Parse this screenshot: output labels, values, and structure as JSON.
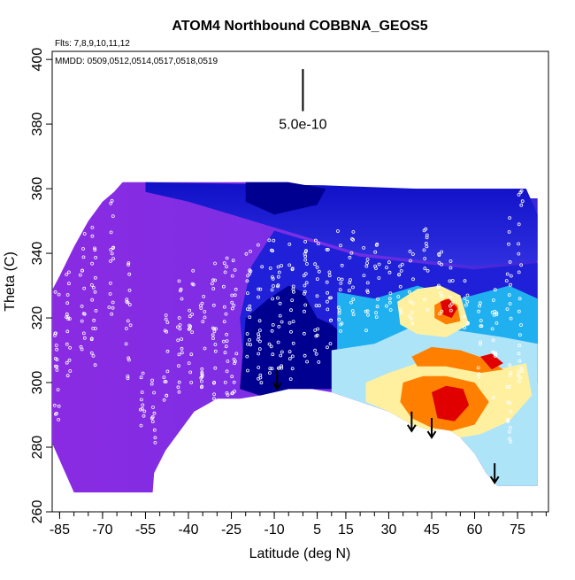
{
  "chart_data": {
    "type": "heatmap",
    "title": "ATOM4 Northbound COBBNA_GEOS5",
    "notes": [
      "Flts: 7,8,9,10,11,12",
      "MMDD: 0509,0512,0514,0517,0518,0519"
    ],
    "xlabel": "Latitude (deg N)",
    "ylabel": "Theta (C)",
    "xlim": [
      -87.6,
      85.8
    ],
    "ylim": [
      260,
      402.5
    ],
    "xticks": [
      -85,
      -70,
      -55,
      -40,
      -25,
      -10,
      5,
      15,
      30,
      45,
      60,
      75
    ],
    "yticks": [
      260,
      280,
      300,
      320,
      340,
      360,
      380,
      400
    ],
    "scale_bar": {
      "label": "5.0e-10",
      "lat": 0,
      "theta_from": 384,
      "theta_to": 397
    },
    "grid": false,
    "arrows": [
      {
        "lat": -9,
        "theta": 298
      },
      {
        "lat": 38,
        "theta": 285
      },
      {
        "lat": 45,
        "theta": 283
      },
      {
        "lat": 67,
        "theta": 269
      }
    ],
    "colors": {
      "violet": "#8a2be2",
      "blue": "#2020d8",
      "navy": "#000090",
      "lightblue": "#aee4f8",
      "cyan": "#20b0f0",
      "yellow": "#fff0a0",
      "orange": "#ff8000",
      "red": "#e00000"
    }
  }
}
